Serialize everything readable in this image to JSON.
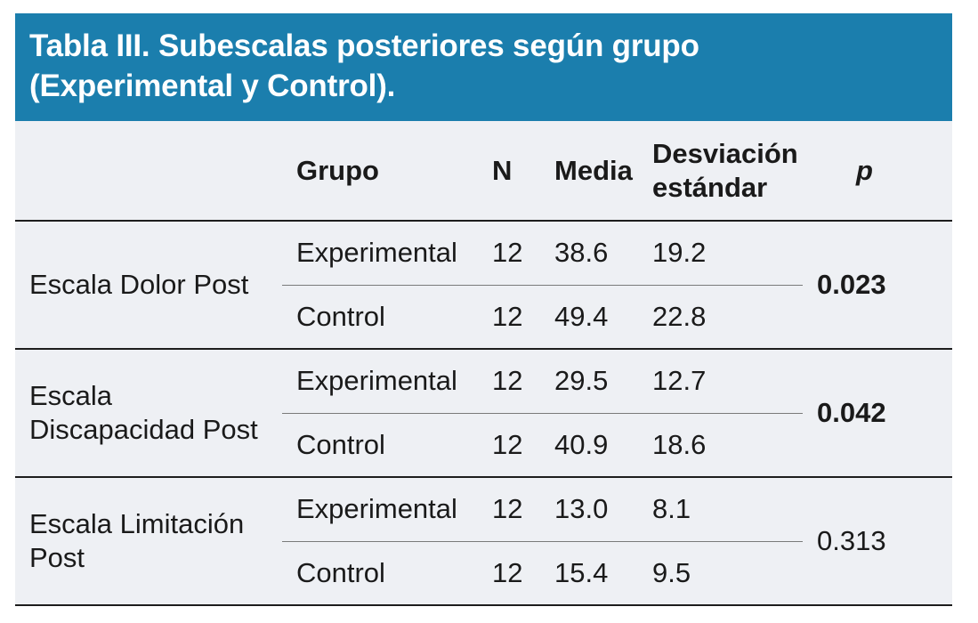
{
  "title": {
    "lines": [
      "Tabla III. Subescalas posteriores según grupo",
      "(Experimental y Control)."
    ]
  },
  "columns": {
    "rowlabel": "",
    "grupo": "Grupo",
    "n": "N",
    "media": "Media",
    "desviacion": "Desviación estándar",
    "p": "p"
  },
  "groups": [
    {
      "label": "Escala Dolor Post",
      "p_value": "0.023",
      "p_bold": true,
      "rows": [
        {
          "grupo": "Experimental",
          "n": "12",
          "media": "38.6",
          "desviacion": "19.2"
        },
        {
          "grupo": "Control",
          "n": "12",
          "media": "49.4",
          "desviacion": "22.8"
        }
      ]
    },
    {
      "label": "Escala Discapacidad Post",
      "p_value": "0.042",
      "p_bold": true,
      "rows": [
        {
          "grupo": "Experimental",
          "n": "12",
          "media": "29.5",
          "desviacion": "12.7"
        },
        {
          "grupo": "Control",
          "n": "12",
          "media": "40.9",
          "desviacion": "18.6"
        }
      ]
    },
    {
      "label": "Escala Limitación Post",
      "p_value": "0.313",
      "p_bold": false,
      "rows": [
        {
          "grupo": "Experimental",
          "n": "12",
          "media": "13.0",
          "desviacion": "8.1"
        },
        {
          "grupo": "Control",
          "n": "12",
          "media": "15.4",
          "desviacion": "9.5"
        }
      ]
    }
  ],
  "colors": {
    "header_bg": "#1b7ead",
    "header_text": "#ffffff",
    "table_bg": "#eef0f4",
    "text": "#1a1a1a",
    "rule_strong": "#1d1d1d",
    "rule_light": "#7a7a7a"
  }
}
